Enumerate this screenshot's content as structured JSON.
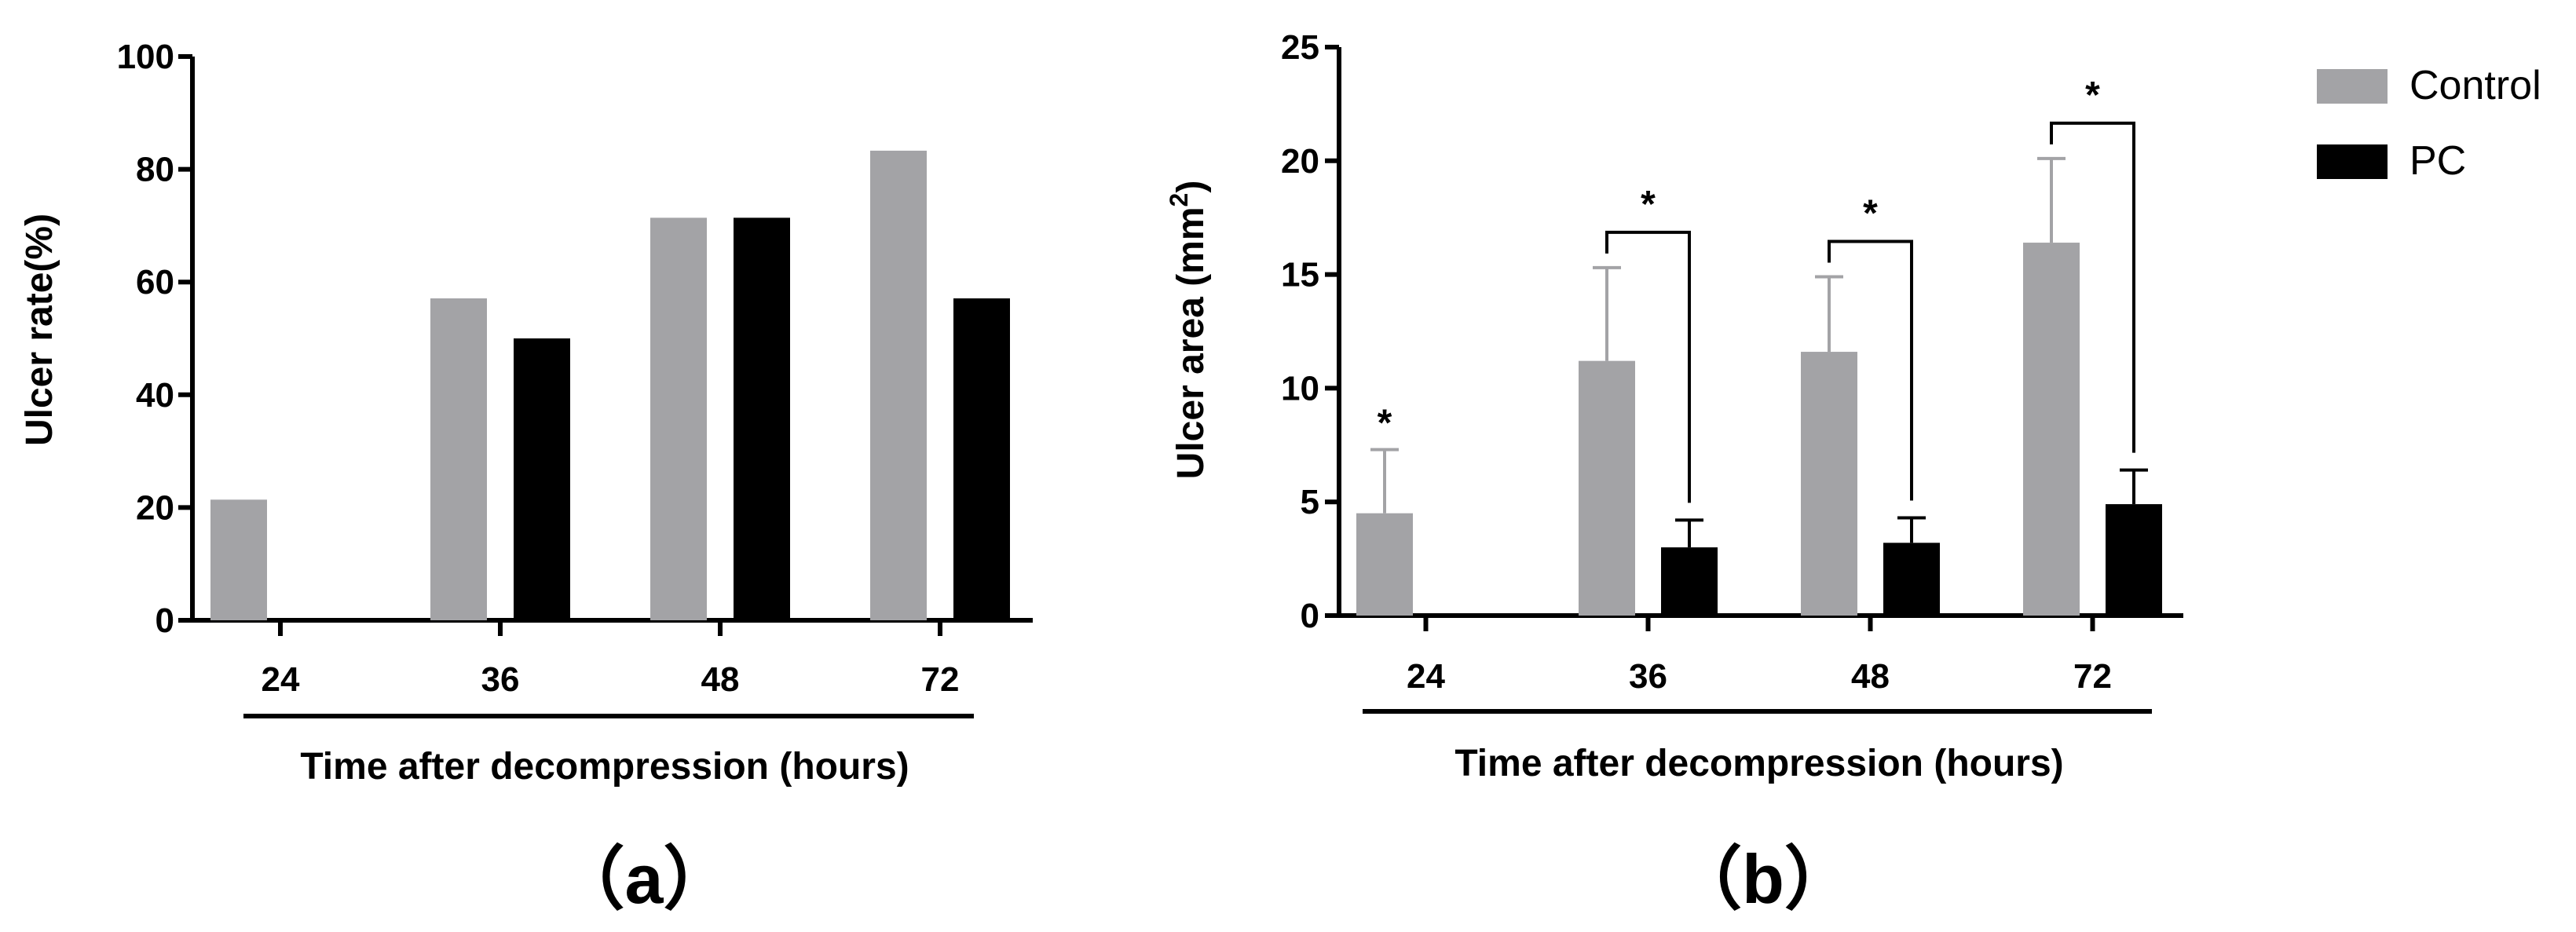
{
  "colors": {
    "control": "#a3a3a6",
    "pc": "#000000",
    "axis": "#000000"
  },
  "legend": {
    "position": "top-right",
    "entries": [
      "Control",
      "PC"
    ]
  },
  "chart_data": [
    {
      "panel_label": "（a）",
      "type": "bar",
      "title": "",
      "xlabel": "Time after decompression (hours)",
      "ylabel": "Ulcer rate(%)",
      "categories": [
        "24",
        "36",
        "48",
        "72"
      ],
      "ylim": [
        0,
        100
      ],
      "yticks": [
        "0",
        "20",
        "40",
        "60",
        "80",
        "100"
      ],
      "series": [
        {
          "name": "Control",
          "values": [
            21.4,
            57.1,
            71.4,
            83.3
          ]
        },
        {
          "name": "PC",
          "values": [
            0,
            50,
            71.4,
            57.1
          ]
        }
      ]
    },
    {
      "panel_label": "（b）",
      "type": "bar",
      "title": "",
      "xlabel": "Time after decompression (hours)",
      "ylabel": "Ulcer area (mm",
      "ylabel_sup": "2",
      "ylabel_close": ")",
      "categories": [
        "24",
        "36",
        "48",
        "72"
      ],
      "ylim": [
        0,
        25
      ],
      "yticks": [
        "0",
        "5",
        "10",
        "15",
        "20",
        "25"
      ],
      "series": [
        {
          "name": "Control",
          "values": [
            4.5,
            11.2,
            11.6,
            16.4
          ],
          "errors": [
            2.8,
            4.1,
            3.3,
            3.7
          ]
        },
        {
          "name": "PC",
          "values": [
            0,
            3.0,
            3.2,
            4.9
          ],
          "errors": [
            0,
            1.2,
            1.1,
            1.5
          ]
        }
      ],
      "annotations": [
        {
          "type": "star",
          "category": "24",
          "text": "*"
        },
        {
          "type": "bracket",
          "category": "36",
          "text": "*"
        },
        {
          "type": "bracket",
          "category": "48",
          "text": "*"
        },
        {
          "type": "bracket",
          "category": "72",
          "text": "*"
        }
      ]
    }
  ]
}
